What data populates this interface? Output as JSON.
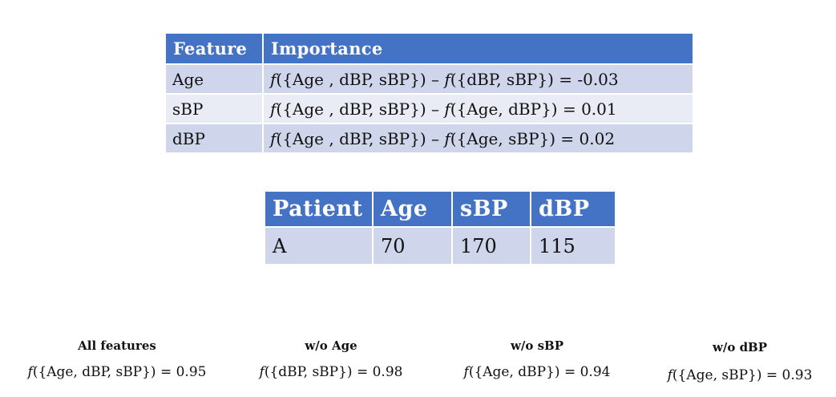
{
  "importance_table": {
    "headers": [
      "Feature",
      "Importance"
    ],
    "rows": [
      {
        "feature": "Age",
        "f": "f",
        "expr": "({Age , dBP, sBP}) – ",
        "f2": "f",
        "expr2": "({dBP, sBP}) = -0.03"
      },
      {
        "feature": "sBP",
        "f": "f",
        "expr": "({Age , dBP, sBP}) – ",
        "f2": "f",
        "expr2": "({Age, dBP}) =  0.01"
      },
      {
        "feature": "dBP",
        "f": "f",
        "expr": "({Age , dBP, sBP}) – ",
        "f2": "f",
        "expr2": "({Age, sBP}) =  0.02"
      }
    ]
  },
  "patient_table": {
    "headers": [
      "Patient",
      "Age",
      "sBP",
      "dBP"
    ],
    "row": [
      "A",
      "70",
      "170",
      "115"
    ]
  },
  "results": [
    {
      "title": "All features",
      "f": "f",
      "formula": "({Age, dBP, sBP}) = 0.95"
    },
    {
      "title": "w/o Age",
      "f": "f",
      "formula": "({dBP, sBP}) = 0.98"
    },
    {
      "title": "w/o sBP",
      "f": "f",
      "formula": "({Age, dBP}) = 0.94"
    },
    {
      "title": "w/o dBP",
      "f": "f",
      "formula": "({Age, sBP}) = 0.93"
    }
  ],
  "colors": {
    "header_blue": "#4472c4",
    "row_dark": "#cfd5ea",
    "row_light": "#e9ebf5"
  }
}
